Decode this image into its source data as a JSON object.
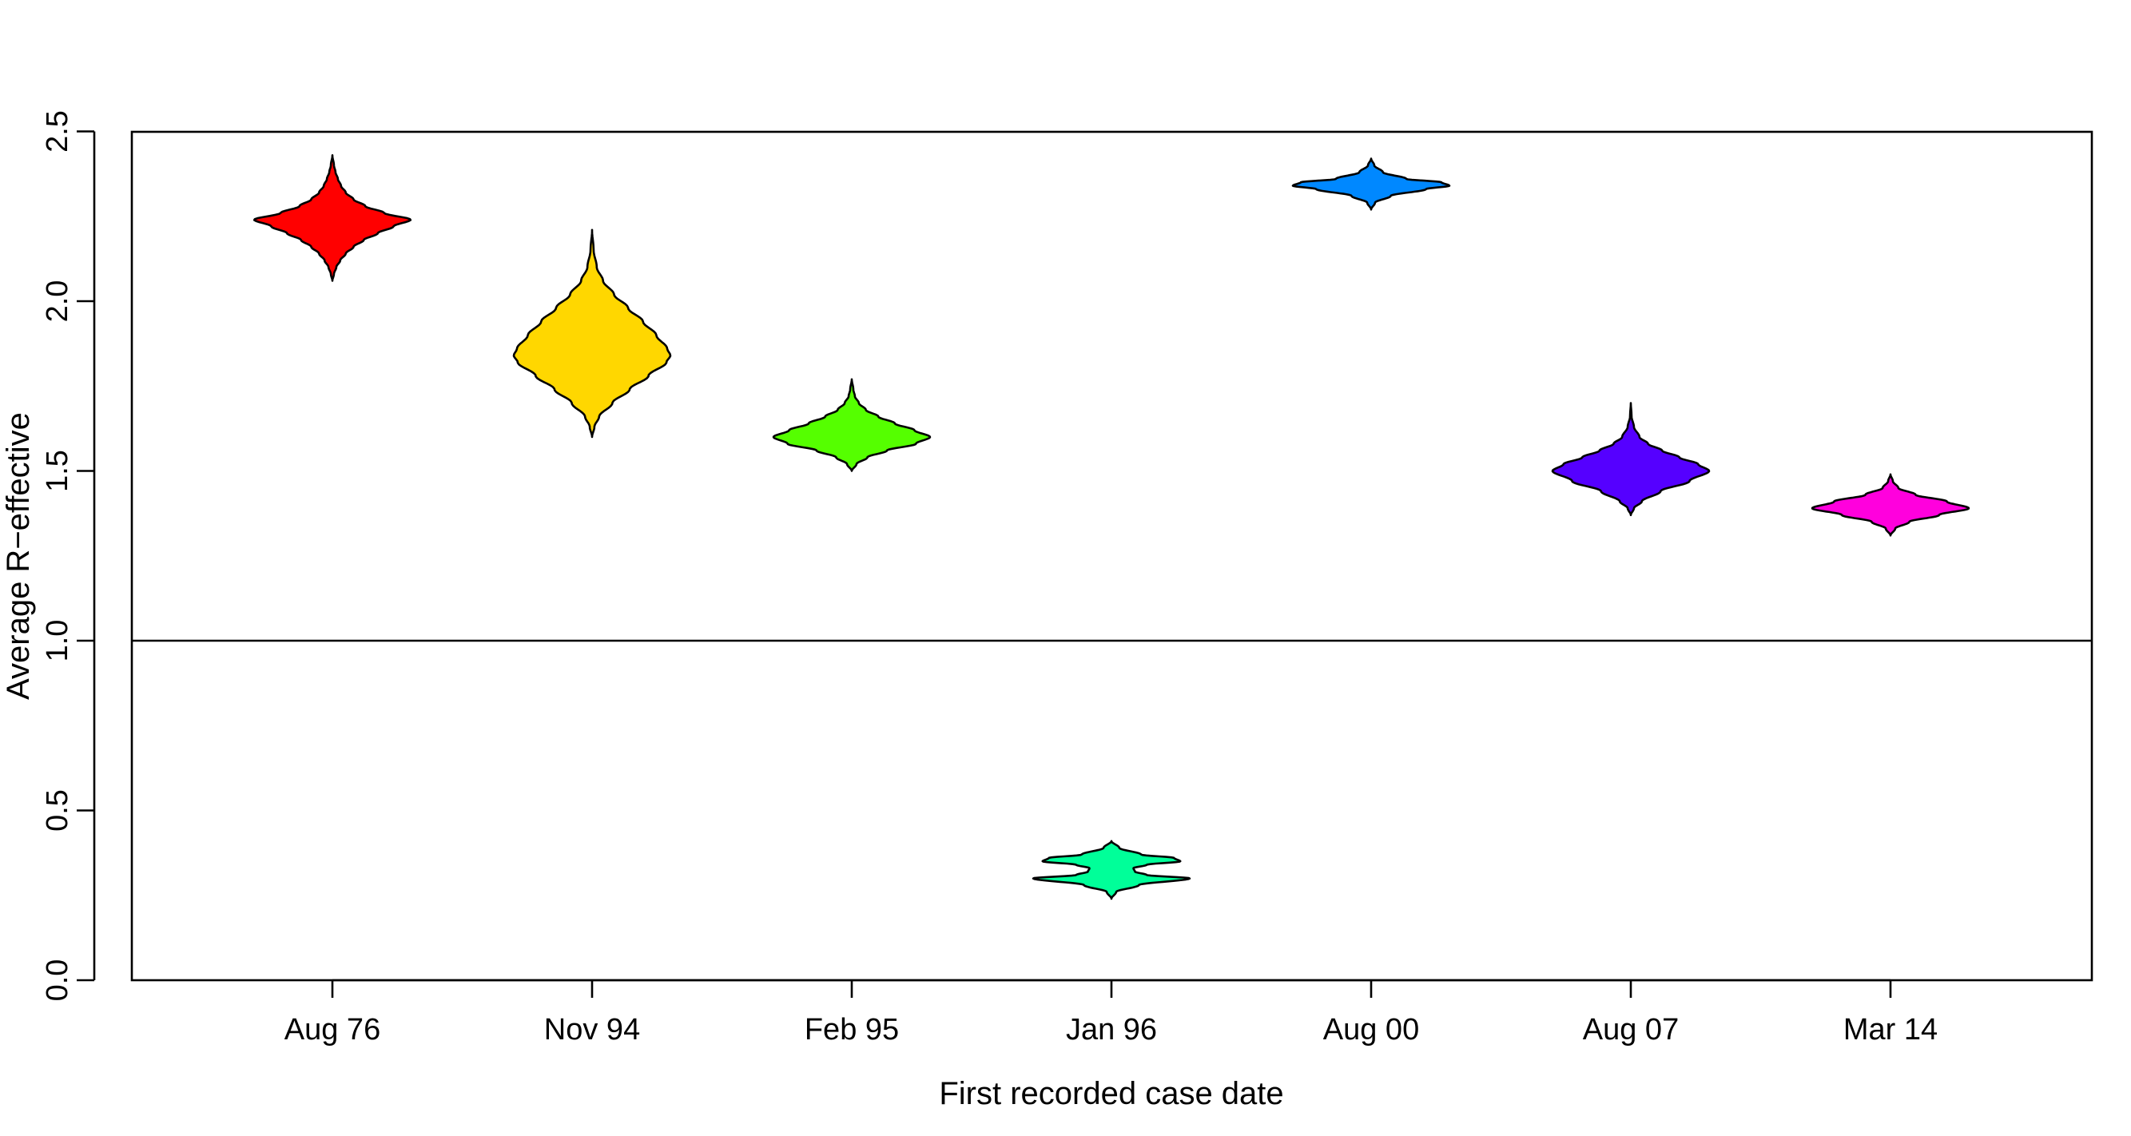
{
  "chart_data": {
    "type": "violin",
    "title": "",
    "xlabel": "First recorded case date",
    "ylabel": "Average R−effective",
    "ylim": [
      0,
      2.5
    ],
    "yticks": [
      "0.0",
      "0.5",
      "1.0",
      "1.5",
      "2.0",
      "2.5"
    ],
    "categories": [
      "Aug 76",
      "Nov 94",
      "Feb 95",
      "Jan 96",
      "Aug 00",
      "Aug 07",
      "Mar 14"
    ],
    "reference_line": 1.0,
    "grid": false,
    "legend": "none",
    "series": [
      {
        "category": "Aug 76",
        "color": "#FF0000",
        "median": 2.24,
        "min": 2.06,
        "max": 2.43,
        "density": [
          [
            2.06,
            0.0
          ],
          [
            2.08,
            0.02
          ],
          [
            2.1,
            0.05
          ],
          [
            2.12,
            0.1
          ],
          [
            2.14,
            0.17
          ],
          [
            2.16,
            0.27
          ],
          [
            2.18,
            0.4
          ],
          [
            2.2,
            0.58
          ],
          [
            2.22,
            0.78
          ],
          [
            2.24,
            1.0
          ],
          [
            2.26,
            0.66
          ],
          [
            2.28,
            0.42
          ],
          [
            2.3,
            0.27
          ],
          [
            2.32,
            0.17
          ],
          [
            2.34,
            0.11
          ],
          [
            2.36,
            0.07
          ],
          [
            2.38,
            0.04
          ],
          [
            2.4,
            0.02
          ],
          [
            2.43,
            0.0
          ]
        ]
      },
      {
        "category": "Nov 94",
        "color": "#FFD700",
        "median": 1.84,
        "min": 1.6,
        "max": 2.21,
        "density": [
          [
            1.6,
            0.0
          ],
          [
            1.63,
            0.03
          ],
          [
            1.66,
            0.09
          ],
          [
            1.7,
            0.26
          ],
          [
            1.74,
            0.48
          ],
          [
            1.78,
            0.72
          ],
          [
            1.82,
            0.95
          ],
          [
            1.84,
            1.0
          ],
          [
            1.86,
            0.96
          ],
          [
            1.9,
            0.82
          ],
          [
            1.94,
            0.65
          ],
          [
            1.98,
            0.46
          ],
          [
            2.02,
            0.28
          ],
          [
            2.06,
            0.14
          ],
          [
            2.1,
            0.06
          ],
          [
            2.15,
            0.02
          ],
          [
            2.21,
            0.0
          ]
        ]
      },
      {
        "category": "Feb 95",
        "color": "#55FF00",
        "median": 1.6,
        "min": 1.5,
        "max": 1.77,
        "density": [
          [
            1.5,
            0.0
          ],
          [
            1.52,
            0.06
          ],
          [
            1.54,
            0.2
          ],
          [
            1.56,
            0.45
          ],
          [
            1.58,
            0.82
          ],
          [
            1.6,
            1.0
          ],
          [
            1.62,
            0.8
          ],
          [
            1.64,
            0.55
          ],
          [
            1.66,
            0.34
          ],
          [
            1.68,
            0.18
          ],
          [
            1.7,
            0.09
          ],
          [
            1.72,
            0.04
          ],
          [
            1.74,
            0.02
          ],
          [
            1.77,
            0.0
          ]
        ]
      },
      {
        "category": "Jan 96",
        "color": "#00FF99",
        "median": 0.33,
        "min": 0.24,
        "max": 0.41,
        "density": [
          [
            0.24,
            0.0
          ],
          [
            0.26,
            0.06
          ],
          [
            0.28,
            0.35
          ],
          [
            0.3,
            1.0
          ],
          [
            0.31,
            0.45
          ],
          [
            0.32,
            0.3
          ],
          [
            0.33,
            0.28
          ],
          [
            0.34,
            0.45
          ],
          [
            0.35,
            0.88
          ],
          [
            0.36,
            0.8
          ],
          [
            0.37,
            0.38
          ],
          [
            0.39,
            0.1
          ],
          [
            0.41,
            0.0
          ]
        ]
      },
      {
        "category": "Aug 00",
        "color": "#0088FF",
        "median": 2.34,
        "min": 2.27,
        "max": 2.42,
        "density": [
          [
            2.27,
            0.0
          ],
          [
            2.29,
            0.05
          ],
          [
            2.31,
            0.25
          ],
          [
            2.33,
            0.7
          ],
          [
            2.34,
            1.0
          ],
          [
            2.35,
            0.9
          ],
          [
            2.36,
            0.45
          ],
          [
            2.38,
            0.15
          ],
          [
            2.4,
            0.04
          ],
          [
            2.42,
            0.0
          ]
        ]
      },
      {
        "category": "Aug 07",
        "color": "#5500FF",
        "median": 1.5,
        "min": 1.37,
        "max": 1.7,
        "density": [
          [
            1.37,
            0.0
          ],
          [
            1.39,
            0.04
          ],
          [
            1.41,
            0.14
          ],
          [
            1.44,
            0.38
          ],
          [
            1.47,
            0.75
          ],
          [
            1.5,
            1.0
          ],
          [
            1.52,
            0.86
          ],
          [
            1.54,
            0.62
          ],
          [
            1.56,
            0.4
          ],
          [
            1.58,
            0.22
          ],
          [
            1.6,
            0.11
          ],
          [
            1.63,
            0.04
          ],
          [
            1.66,
            0.01
          ],
          [
            1.7,
            0.0
          ]
        ]
      },
      {
        "category": "Mar 14",
        "color": "#FF00DD",
        "median": 1.39,
        "min": 1.31,
        "max": 1.49,
        "density": [
          [
            1.31,
            0.0
          ],
          [
            1.33,
            0.06
          ],
          [
            1.35,
            0.24
          ],
          [
            1.37,
            0.62
          ],
          [
            1.39,
            1.0
          ],
          [
            1.41,
            0.72
          ],
          [
            1.43,
            0.32
          ],
          [
            1.45,
            0.1
          ],
          [
            1.47,
            0.03
          ],
          [
            1.49,
            0.0
          ]
        ]
      }
    ]
  }
}
